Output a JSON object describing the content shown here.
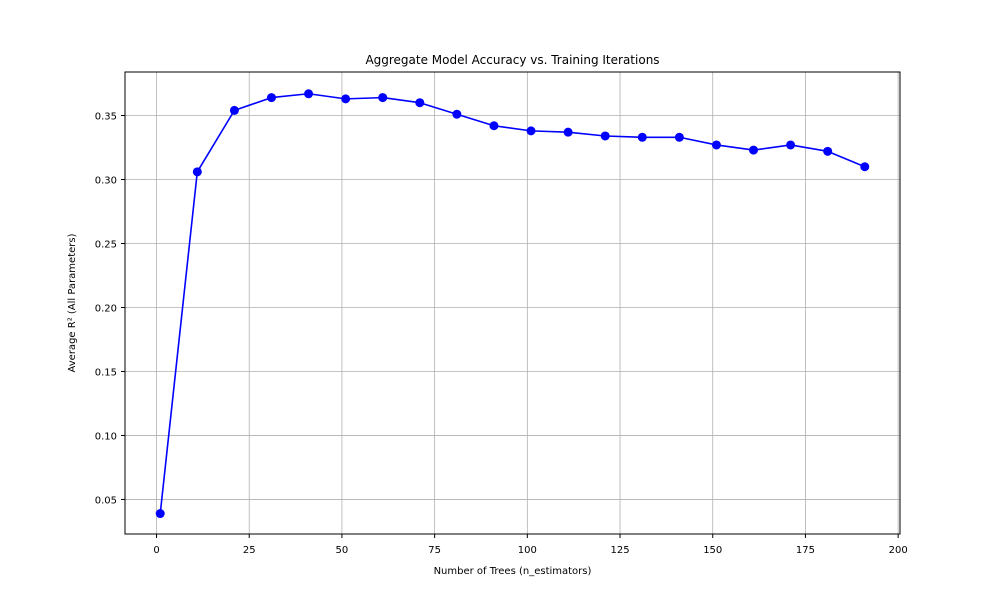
{
  "colors": {
    "line": "#0000ff",
    "marker": "#0000ff",
    "grid": "#b0b0b0",
    "axes": "#000000",
    "background": "#ffffff"
  },
  "chart_data": {
    "type": "line",
    "title": "Aggregate Model Accuracy vs. Training Iterations",
    "xlabel": "Number of Trees (n_estimators)",
    "ylabel": "Average R² (All Parameters)",
    "xlim": [
      -8.5,
      200.5
    ],
    "ylim": [
      0.023,
      0.384
    ],
    "grid": true,
    "marker": "circle",
    "xticks": [
      0,
      25,
      50,
      75,
      100,
      125,
      150,
      175,
      200
    ],
    "xtick_labels": [
      "0",
      "25",
      "50",
      "75",
      "100",
      "125",
      "150",
      "175",
      "200"
    ],
    "yticks": [
      0.05,
      0.1,
      0.15,
      0.2,
      0.25,
      0.3,
      0.35
    ],
    "ytick_labels": [
      "0.05",
      "0.10",
      "0.15",
      "0.20",
      "0.25",
      "0.30",
      "0.35"
    ],
    "x": [
      1,
      11,
      21,
      31,
      41,
      51,
      61,
      71,
      81,
      91,
      101,
      111,
      121,
      131,
      141,
      151,
      161,
      171,
      181,
      191
    ],
    "series": [
      {
        "values": [
          0.039,
          0.306,
          0.354,
          0.364,
          0.367,
          0.363,
          0.364,
          0.36,
          0.351,
          0.342,
          0.338,
          0.337,
          0.334,
          0.333,
          0.333,
          0.327,
          0.323,
          0.327,
          0.322,
          0.31
        ]
      }
    ]
  }
}
